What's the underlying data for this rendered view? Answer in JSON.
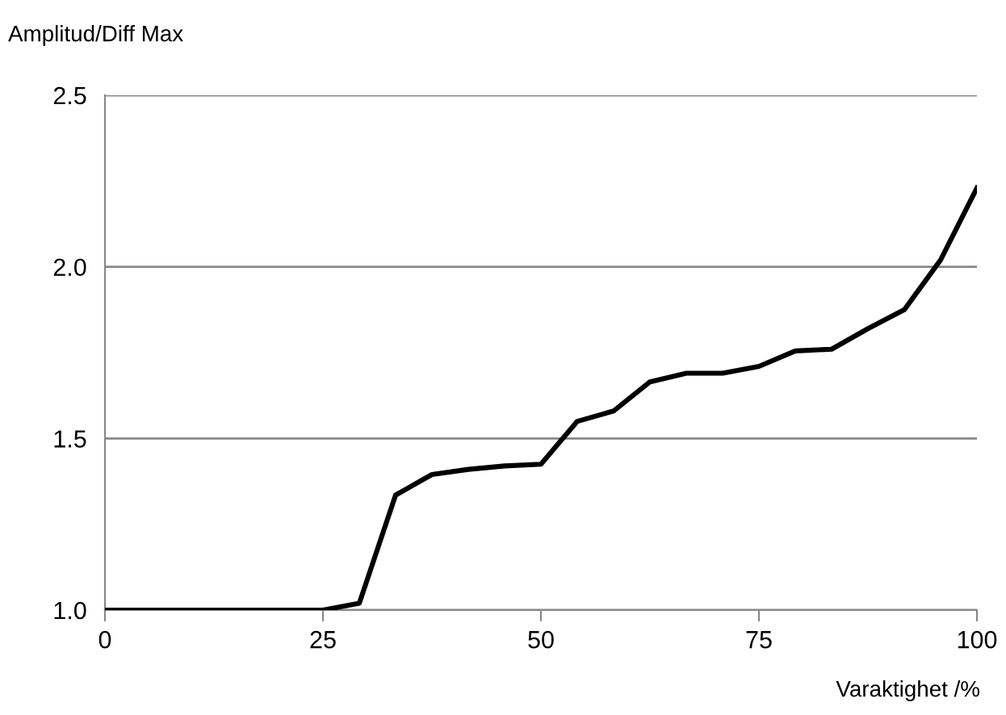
{
  "chart_data": {
    "type": "line",
    "ylabel": "Amplitud/Diff Max",
    "xlabel": "Varaktighet /%",
    "x": [
      0,
      4.17,
      8.33,
      12.5,
      16.67,
      20.83,
      25,
      29.17,
      33.33,
      37.5,
      41.67,
      45.83,
      50,
      54.17,
      58.33,
      62.5,
      66.67,
      70.83,
      75,
      79.17,
      83.33,
      87.5,
      91.67,
      95.83,
      100
    ],
    "series": [
      {
        "color": "#000000",
        "values": [
          1.0,
          1.0,
          1.0,
          1.0,
          1.0,
          1.0,
          1.0,
          1.02,
          1.335,
          1.395,
          1.41,
          1.42,
          1.425,
          1.55,
          1.58,
          1.665,
          1.69,
          1.69,
          1.71,
          1.755,
          1.76,
          1.82,
          1.875,
          2.02,
          2.23
        ]
      }
    ],
    "xlim": [
      0,
      100
    ],
    "xticks": [
      0,
      25,
      50,
      75,
      100
    ],
    "ylim": [
      1.0,
      2.5
    ],
    "yticks": [
      {
        "value": 1.0,
        "label": "1.0"
      },
      {
        "value": 1.5,
        "label": "1.5"
      },
      {
        "value": 2.0,
        "label": "2.0"
      },
      {
        "value": 2.5,
        "label": "2.5"
      }
    ],
    "grid": "y",
    "legend": false
  }
}
